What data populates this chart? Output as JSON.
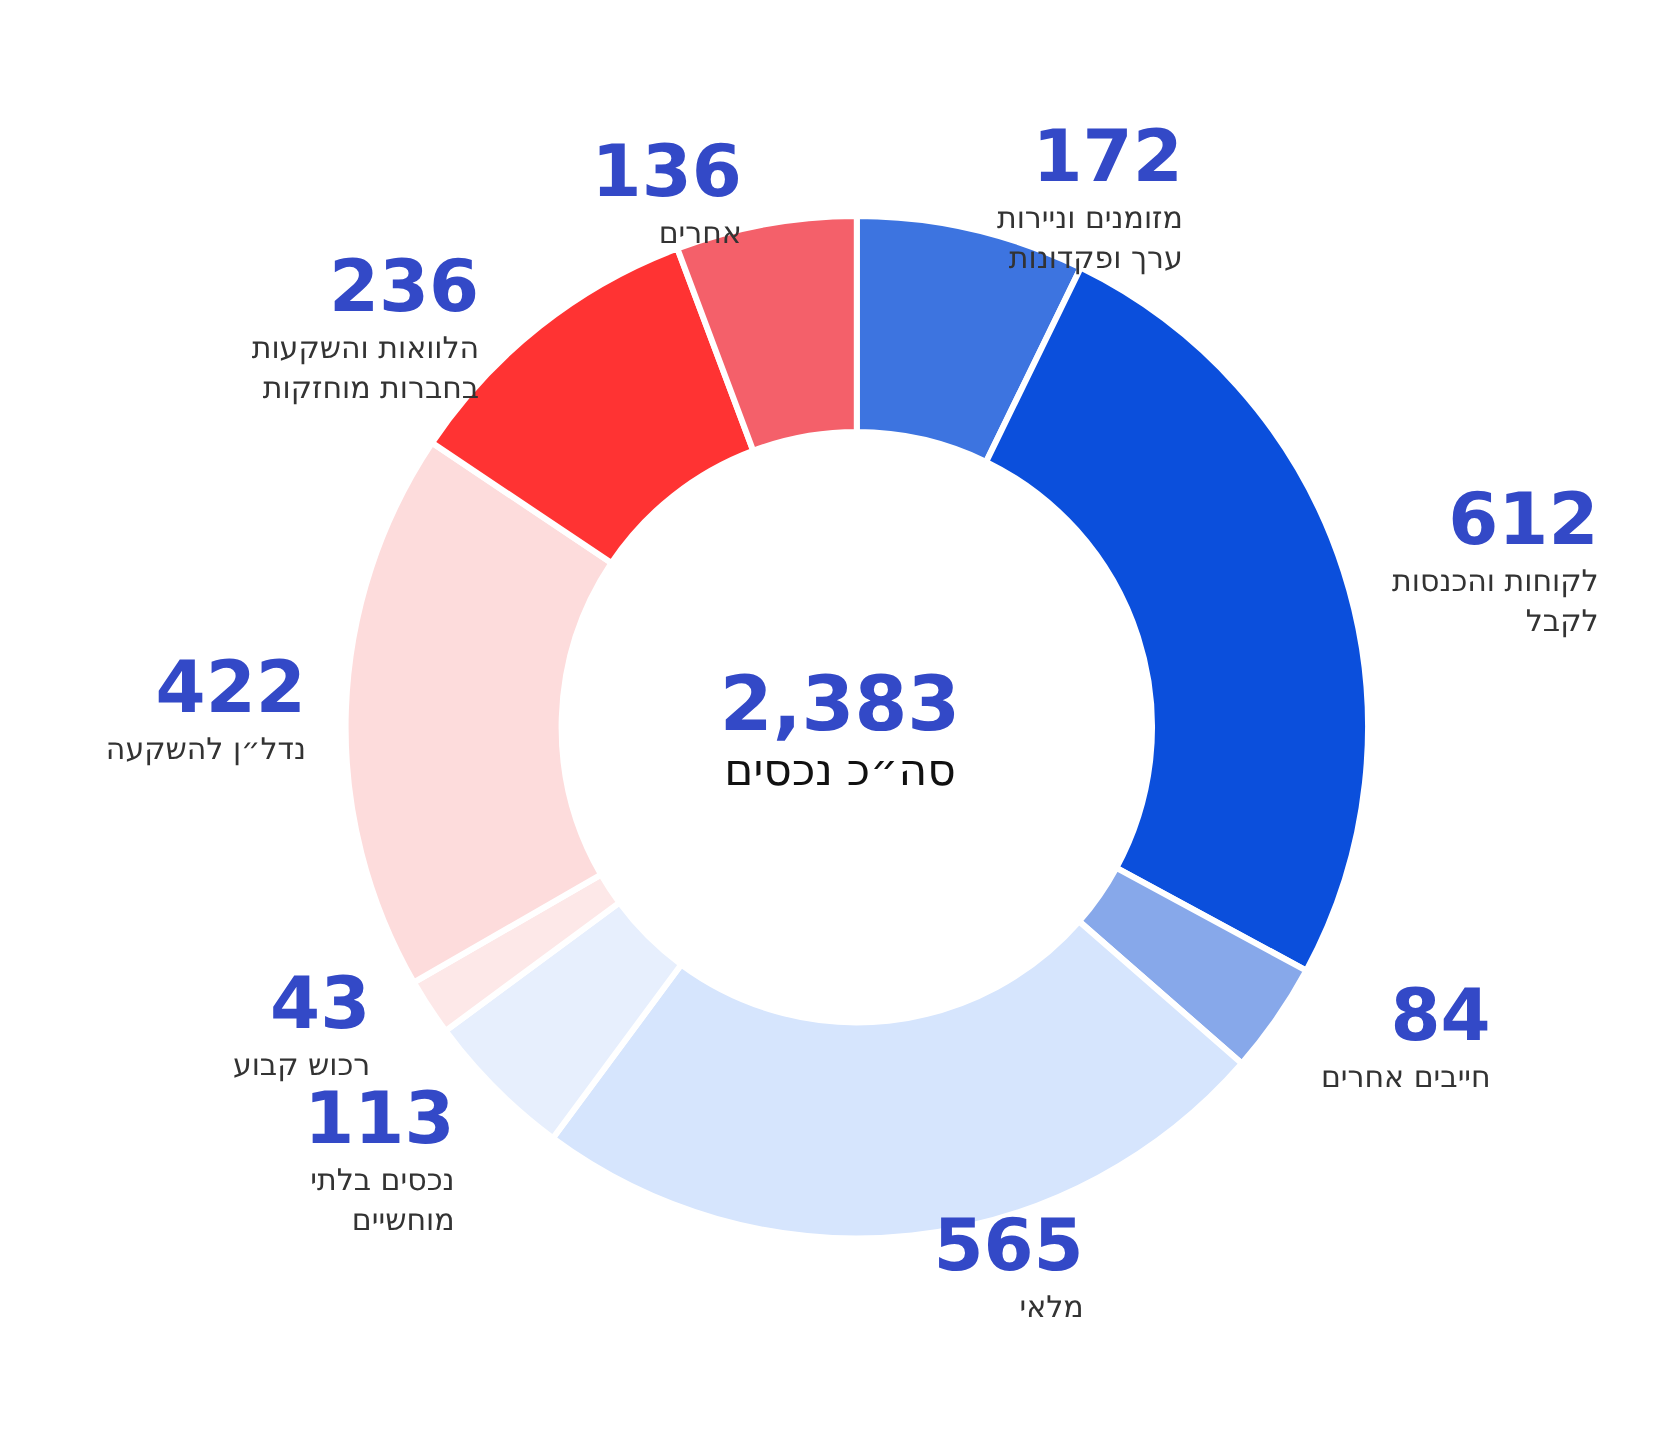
{
  "chart_data": {
    "type": "donut",
    "categories": [
      "מזומנים וניירות ערך ופקדונות",
      "לקוחות והכנסות לקבל",
      "חייבים אחרים",
      "מלאי",
      "נכסים בלתי מוחשיים",
      "רכוש קבוע",
      "נדל״ן להשקעה",
      "הלוואות והשקעות בחברות מוחזקות",
      "אחרים"
    ],
    "values": [
      172,
      612,
      84,
      565,
      113,
      43,
      422,
      236,
      136
    ],
    "colors": [
      "#3d74e0",
      "#0b4fdc",
      "#87a8ea",
      "#d6e5fd",
      "#e7effd",
      "#fde8e8",
      "#fddcdc",
      "#ff3333",
      "#f4606a"
    ],
    "data_labels": true,
    "legend": false,
    "annotations": [
      "2,383",
      "סה״כ נכסים"
    ]
  }
}
